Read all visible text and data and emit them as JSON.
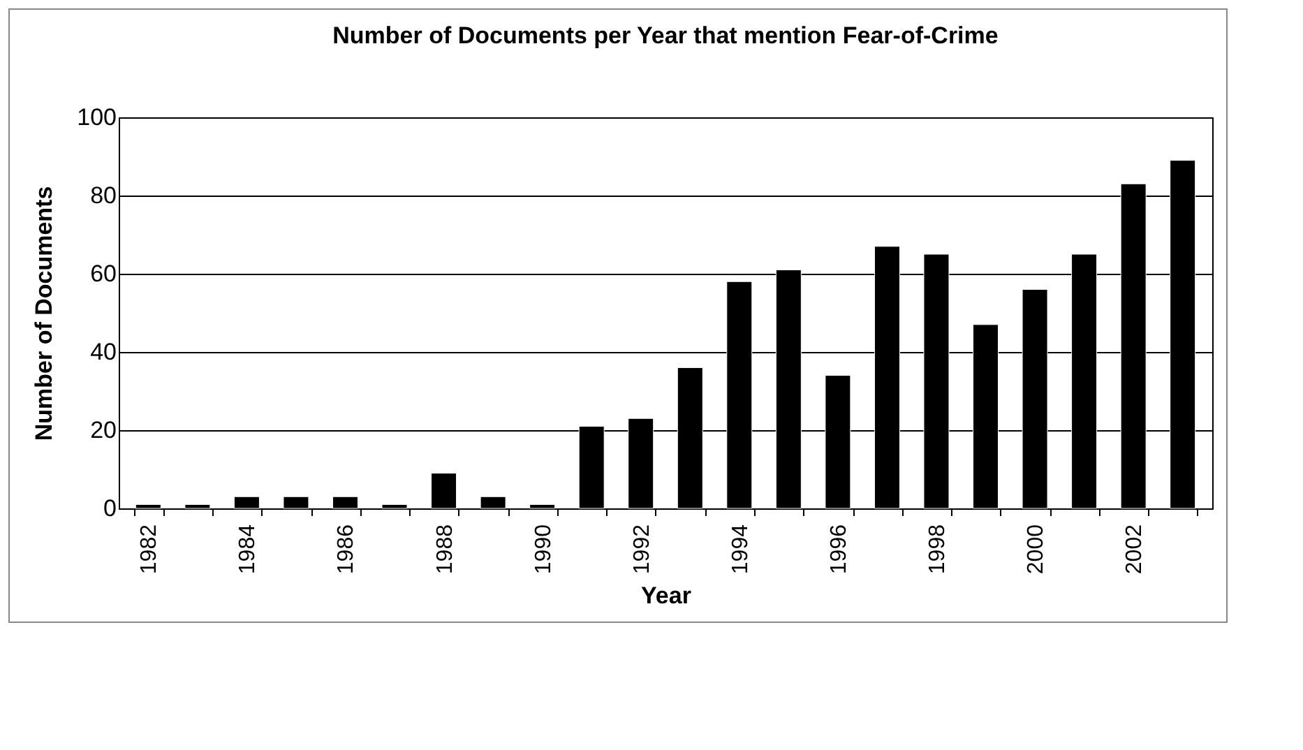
{
  "chart_data": {
    "type": "bar",
    "title": "Number of Documents per Year that mention Fear-of-Crime",
    "xlabel": "Year",
    "ylabel": "Number of Documents",
    "categories": [
      "1982",
      null,
      "1984",
      null,
      "1986",
      null,
      "1988",
      null,
      "1990",
      null,
      "1992",
      null,
      "1994",
      null,
      "1996",
      null,
      "1998",
      null,
      "2000",
      null,
      "2002",
      null
    ],
    "values": [
      1,
      1,
      3,
      3,
      3,
      1,
      9,
      3,
      1,
      21,
      23,
      36,
      58,
      61,
      34,
      67,
      65,
      47,
      56,
      65,
      83,
      89
    ],
    "color": "#000000",
    "ylim": [
      0,
      100
    ],
    "yticks": [
      0,
      20,
      40,
      60,
      80,
      100
    ],
    "grid": "y"
  }
}
